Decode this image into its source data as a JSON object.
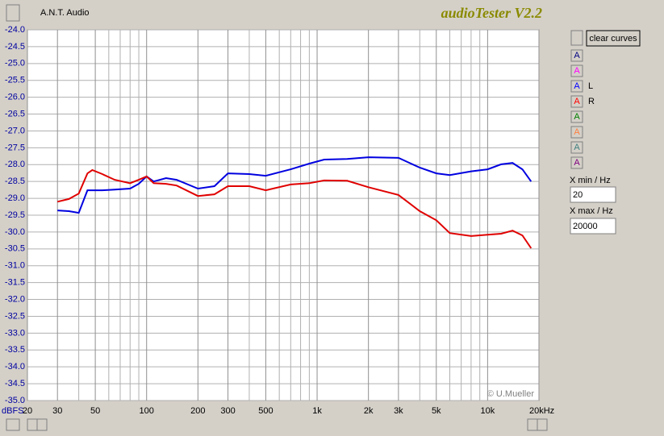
{
  "app": {
    "vendor": "A.N.T. Audio",
    "title": "audioTester V2.2",
    "clear_button": "clear curves",
    "copyright": "© U.Mueller",
    "channels": [
      {
        "button": "A",
        "color": "#000080"
      },
      {
        "button": "A",
        "color": "#ff00ff"
      },
      {
        "button": "A",
        "color": "#0000ff"
      },
      {
        "button": "A",
        "color": "#ff0000"
      },
      {
        "button": "A",
        "color": "#008000"
      },
      {
        "button": "A",
        "color": "#ff8040"
      },
      {
        "button": "A",
        "color": "#408080"
      },
      {
        "button": "A",
        "color": "#800080"
      }
    ],
    "xmin_label": "X min / Hz",
    "xmin_value": "20",
    "xmax_label": "X max / Hz",
    "xmax_value": "20000"
  },
  "chart_data": {
    "type": "line",
    "ylabel": "dBFS",
    "xscale": "log",
    "grid": true,
    "xlim": [
      20,
      20000
    ],
    "ylim": [
      -35,
      -24
    ],
    "xticks": [
      20,
      30,
      50,
      100,
      200,
      300,
      500,
      {
        "value": 1000,
        "label": "1k"
      },
      {
        "value": 2000,
        "label": "2k"
      },
      {
        "value": 3000,
        "label": "3k"
      },
      {
        "value": 5000,
        "label": "5k"
      },
      {
        "value": 10000,
        "label": "10k"
      },
      {
        "value": 20000,
        "label": "20kHz"
      }
    ],
    "xminor": [
      40,
      60,
      70,
      80,
      90,
      400,
      600,
      700,
      800,
      900,
      4000,
      6000,
      7000,
      8000,
      9000
    ],
    "yticks": [
      {
        "value": -24,
        "label": "-24.0"
      },
      -24.5,
      {
        "value": -25,
        "label": "-25.0"
      },
      -25.5,
      {
        "value": -26,
        "label": "-26.0"
      },
      -26.5,
      {
        "value": -27,
        "label": "-27.0"
      },
      -27.5,
      {
        "value": -28,
        "label": "-28.0"
      },
      -28.5,
      {
        "value": -29,
        "label": "-29.0"
      },
      -29.5,
      {
        "value": -30,
        "label": "-30.0"
      },
      -30.5,
      {
        "value": -31,
        "label": "-31.0"
      },
      -31.5,
      {
        "value": -32,
        "label": "-32.0"
      },
      -32.5,
      {
        "value": -33,
        "label": "-33.0"
      },
      -33.5,
      {
        "value": -34,
        "label": "-34.0"
      },
      -34.5,
      {
        "value": -35,
        "label": "-35.0"
      }
    ],
    "x": [
      30,
      35,
      40,
      45,
      48,
      55,
      65,
      80,
      90,
      100,
      110,
      130,
      150,
      200,
      250,
      300,
      400,
      500,
      700,
      900,
      1100,
      1500,
      2000,
      3000,
      4000,
      5000,
      6000,
      8000,
      10000,
      12000,
      14000,
      16000,
      18000
    ],
    "series": [
      {
        "name": "L",
        "color": "#0000e0",
        "values": [
          -29.36,
          -29.38,
          -29.43,
          -28.76,
          -28.76,
          -28.76,
          -28.74,
          -28.71,
          -28.57,
          -28.35,
          -28.5,
          -28.4,
          -28.45,
          -28.71,
          -28.64,
          -28.26,
          -28.28,
          -28.33,
          -28.14,
          -27.97,
          -27.85,
          -27.83,
          -27.78,
          -27.8,
          -28.09,
          -28.26,
          -28.31,
          -28.2,
          -28.14,
          -27.99,
          -27.95,
          -28.14,
          -28.5
        ]
      },
      {
        "name": "R",
        "color": "#e00000",
        "values": [
          -29.1,
          -29.02,
          -28.86,
          -28.26,
          -28.16,
          -28.28,
          -28.45,
          -28.55,
          -28.45,
          -28.35,
          -28.55,
          -28.57,
          -28.62,
          -28.93,
          -28.88,
          -28.64,
          -28.64,
          -28.76,
          -28.59,
          -28.55,
          -28.47,
          -28.48,
          -28.67,
          -28.9,
          -29.38,
          -29.65,
          -30.03,
          -30.12,
          -30.08,
          -30.05,
          -29.96,
          -30.1,
          -30.48
        ]
      }
    ]
  }
}
